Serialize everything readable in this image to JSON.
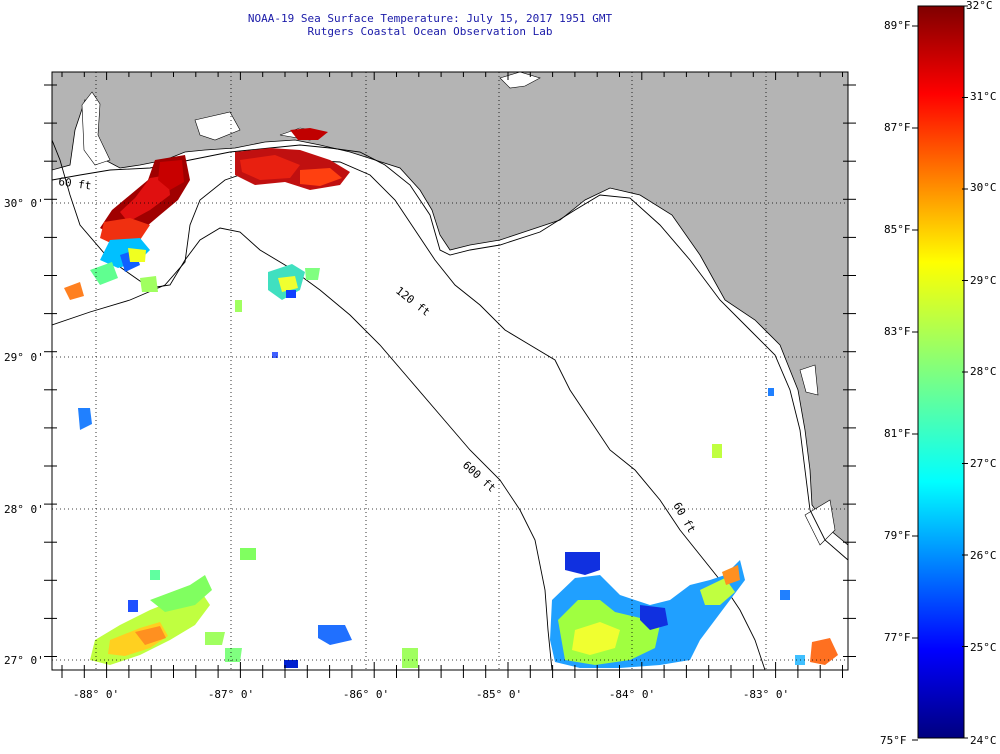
{
  "title": {
    "line1": "NOAA-19 Sea Surface Temperature:  July 15, 2017 1951 GMT",
    "line2": "Rutgers Coastal Ocean Observation Lab"
  },
  "map": {
    "lon_labels": [
      "-88° 0'",
      "-87° 0'",
      "-86° 0'",
      "-85° 0'",
      "-84° 0'",
      "-83° 0'"
    ],
    "lat_labels": [
      "30° 0'",
      "29° 0'",
      "28° 0'",
      "27° 0'"
    ],
    "isobath_labels": [
      "60 ft",
      "120 ft",
      "600 ft",
      "60 ft"
    ],
    "land_color": "#b4b4b4",
    "ocean_color": "#ffffff"
  },
  "colorbar": {
    "celsius_labels": [
      "32°C",
      "31°C",
      "30°C",
      "29°C",
      "28°C",
      "27°C",
      "26°C",
      "25°C",
      "24°C"
    ],
    "fahrenheit_labels": [
      "89°F",
      "87°F",
      "85°F",
      "83°F",
      "81°F",
      "79°F",
      "77°F",
      "75°F"
    ],
    "colormap": "jet",
    "range_c": [
      24,
      32
    ]
  }
}
